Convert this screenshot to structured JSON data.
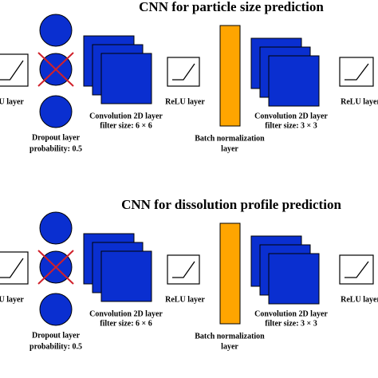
{
  "panels": [
    {
      "title": "CNN for particle size prediction",
      "relu_1": "ReLU layer",
      "dropout": [
        "Dropout layer",
        "probability: 0.5"
      ],
      "conv_1": [
        "Convolution 2D layer",
        "filter size: 6 × 6"
      ],
      "relu_2": "ReLU layer",
      "batch_norm": [
        "Batch normalization",
        "layer"
      ],
      "conv_2": [
        "Convolution 2D layer",
        "filter size: 3 × 3"
      ],
      "relu_3": "ReLU layer"
    },
    {
      "title": "CNN for dissolution profile prediction",
      "relu_1": "ReLU layer",
      "dropout": [
        "Dropout layer",
        "probability: 0.5"
      ],
      "conv_1": [
        "Convolution 2D layer",
        "filter size: 6 × 6"
      ],
      "relu_2": "ReLU layer",
      "batch_norm": [
        "Batch normalization",
        "layer"
      ],
      "conv_2": [
        "Convolution 2D layer",
        "filter size: 3 × 3"
      ],
      "relu_3": "ReLU layer"
    }
  ]
}
